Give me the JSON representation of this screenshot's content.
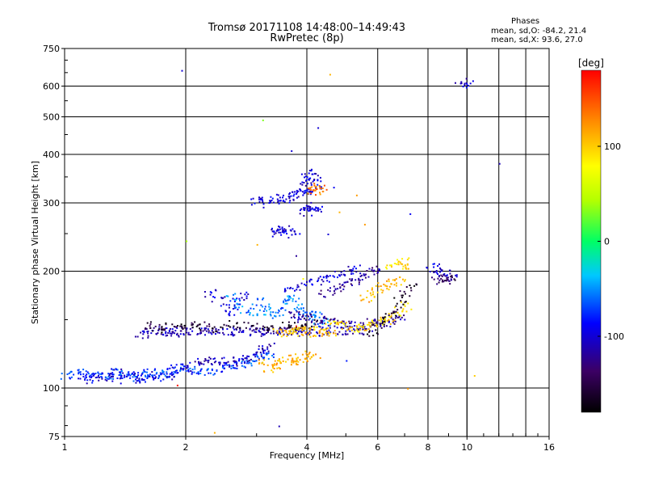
{
  "header": {
    "title": "Tromsø 20171108 14:48:00–14:49:43",
    "subtitle": "RwPretec (8p)"
  },
  "phases": {
    "heading": "Phases",
    "o_line": "mean, sd,O:  -84.2, 21.4",
    "x_line": "mean, sd,X:  93.6, 27.0"
  },
  "chart_data": {
    "type": "scatter",
    "title": "Tromsø 20171108 14:48:00–14:49:43",
    "xlabel": "Frequency [MHz]",
    "ylabel": "Stationary phase Virtual Height [km]",
    "x_scale": "log",
    "y_scale": "log",
    "xlim": [
      1,
      16
    ],
    "ylim": [
      75,
      750
    ],
    "xticks": [
      1,
      2,
      4,
      6,
      8,
      10,
      16
    ],
    "yticks": [
      75,
      100,
      200,
      300,
      400,
      500,
      600,
      750
    ],
    "grid": true,
    "colorbar": {
      "label": "[deg]",
      "range": [
        -180,
        180
      ],
      "ticks": [
        -100,
        0,
        100
      ],
      "colormap": "rainbow"
    },
    "traces": [
      {
        "x": [
          1.0,
          1.05,
          1.1,
          1.15,
          1.2,
          1.25,
          1.3,
          1.35,
          1.4,
          1.45,
          1.5,
          1.55,
          1.6,
          1.65,
          1.7,
          1.75,
          1.8,
          1.85,
          1.9,
          2.0,
          2.1,
          2.2,
          2.3,
          2.4,
          2.5,
          2.6,
          2.7,
          2.8,
          2.9,
          3.0,
          3.1,
          3.2
        ],
        "y": [
          108,
          110,
          110,
          108,
          110,
          109,
          107,
          110,
          109,
          108,
          107,
          108,
          110,
          109,
          110,
          108,
          109,
          111,
          113,
          112,
          112,
          111,
          111,
          111,
          115,
          115,
          115,
          117,
          119,
          119,
          121,
          122
        ],
        "phase": -70
      },
      {
        "x": [
          1.1,
          1.15,
          1.2,
          1.25,
          1.3,
          1.35,
          1.4,
          1.45,
          1.5,
          1.55,
          1.6,
          1.7,
          1.8,
          1.9,
          2.0
        ],
        "y": [
          107,
          105,
          108,
          107,
          110,
          105,
          110,
          108,
          107,
          105,
          108,
          107,
          108,
          111,
          111
        ],
        "phase": -95
      },
      {
        "x": [
          2.0,
          2.1,
          2.2,
          2.3,
          2.4,
          2.5,
          2.6,
          2.7,
          2.8,
          2.9,
          3.0,
          3.1,
          3.2
        ],
        "y": [
          115,
          116,
          118,
          118,
          119,
          116,
          117,
          118,
          119,
          120,
          124,
          126,
          128
        ],
        "phase": -105
      },
      {
        "x": [
          3.1,
          3.2,
          3.3,
          3.4,
          3.5,
          3.6,
          3.7,
          3.8,
          3.9,
          4.0,
          4.1
        ],
        "y": [
          116,
          113,
          114,
          116,
          120,
          119,
          117,
          120,
          120,
          122,
          122
        ],
        "phase": 110
      },
      {
        "x": [
          1.55,
          1.6,
          1.65,
          1.7,
          1.75,
          1.8,
          1.85,
          1.9,
          1.95,
          2.0,
          2.1,
          2.2,
          2.3,
          2.4,
          2.5,
          2.6,
          2.7,
          2.8,
          2.9,
          3.0,
          3.1,
          3.2,
          3.3,
          3.4,
          3.5,
          3.6,
          3.7,
          3.8,
          3.9,
          4.0,
          4.2,
          4.4,
          4.6,
          4.8,
          5.0,
          5.2,
          5.4,
          5.6
        ],
        "y": [
          138,
          140,
          138,
          141,
          140,
          140,
          139,
          141,
          140,
          141,
          140,
          140,
          141,
          140,
          141,
          140,
          141,
          140,
          142,
          140,
          141,
          140,
          140,
          140,
          141,
          140,
          141,
          140,
          141,
          141,
          140,
          141,
          141,
          141,
          141,
          141,
          140,
          142
        ],
        "phase": -110
      },
      {
        "x": [
          1.6,
          1.7,
          1.8,
          1.9,
          2.0,
          2.1,
          2.2,
          2.3,
          2.5,
          2.7,
          2.9,
          3.1,
          3.3,
          3.5,
          3.7,
          3.9,
          4.1
        ],
        "y": [
          146,
          143,
          145,
          147,
          144,
          146,
          145,
          143,
          147,
          146,
          145,
          144,
          144,
          146,
          145,
          146,
          147
        ],
        "phase": -160
      },
      {
        "x": [
          2.6,
          2.7,
          2.8,
          2.9,
          3.0,
          3.1,
          3.2,
          3.3,
          3.4,
          3.5,
          3.6,
          3.7,
          3.8,
          3.9,
          4.0,
          4.1,
          4.2,
          4.3,
          4.4
        ],
        "y": [
          172,
          165,
          160,
          158,
          168,
          163,
          158,
          155,
          157,
          165,
          170,
          172,
          162,
          158,
          155,
          154,
          156,
          150,
          148
        ],
        "phase": -55
      },
      {
        "x": [
          2.3,
          2.4,
          2.5,
          2.6,
          2.7,
          2.8,
          3.6,
          3.8,
          4.0,
          4.2,
          4.4,
          4.6,
          4.8,
          5.0,
          5.2
        ],
        "y": [
          176,
          170,
          162,
          158,
          168,
          174,
          178,
          183,
          188,
          190,
          192,
          194,
          197,
          200,
          202
        ],
        "phase": -100
      },
      {
        "x": [
          3.7,
          3.8,
          3.9,
          4.0,
          4.2,
          4.4,
          4.6,
          4.8,
          5.0,
          5.2,
          5.4,
          5.6,
          5.8,
          6.0,
          6.2,
          6.4,
          6.6,
          6.8
        ],
        "y": [
          155,
          153,
          152,
          152,
          150,
          151,
          149,
          148,
          146,
          145,
          144,
          148,
          150,
          148,
          147,
          146,
          150,
          154
        ],
        "phase": -120
      },
      {
        "x": [
          3.4,
          3.5,
          3.6,
          3.7,
          3.8,
          3.9,
          4.0,
          4.1,
          4.2,
          4.3,
          4.4,
          4.6
        ],
        "y": [
          140,
          139,
          140,
          141,
          141,
          140,
          141,
          140,
          139,
          141,
          140,
          140
        ],
        "phase": 105
      },
      {
        "x": [
          4.6,
          4.8,
          5.0,
          5.2,
          5.4,
          5.6,
          5.8,
          6.0,
          6.2,
          6.4,
          6.6,
          6.8,
          7.0
        ],
        "y": [
          148,
          146,
          145,
          143,
          142,
          143,
          146,
          148,
          150,
          152,
          156,
          160,
          164
        ],
        "phase": 95
      },
      {
        "x": [
          5.6,
          5.8,
          6.0,
          6.2,
          6.4,
          6.6,
          6.8
        ],
        "y": [
          170,
          176,
          180,
          183,
          188,
          186,
          190
        ],
        "phase": 110
      },
      {
        "x": [
          5.8,
          6.0,
          6.2,
          6.4,
          6.6,
          6.8,
          7.0,
          7.2
        ],
        "y": [
          140,
          145,
          150,
          155,
          160,
          168,
          175,
          185
        ],
        "phase": -165
      },
      {
        "x": [
          4.4,
          4.6,
          4.8,
          5.0,
          5.2,
          5.4,
          5.6,
          5.8,
          6.0
        ],
        "y": [
          176,
          178,
          182,
          186,
          188,
          192,
          198,
          200,
          204
        ],
        "phase": -120
      },
      {
        "x": [
          3.0,
          3.1,
          3.2,
          3.3,
          3.4,
          3.5,
          3.6,
          3.7,
          3.8,
          3.9,
          4.0,
          4.1,
          4.2
        ],
        "y": [
          305,
          308,
          300,
          310,
          312,
          306,
          310,
          315,
          318,
          320,
          322,
          325,
          328
        ],
        "phase": -100
      },
      {
        "x": [
          3.95,
          4.0,
          4.05,
          4.1,
          4.15,
          4.2
        ],
        "y": [
          285,
          292,
          290,
          295,
          290,
          292
        ],
        "phase": -100
      },
      {
        "x": [
          3.95,
          4.0,
          4.05,
          4.1,
          4.2
        ],
        "y": [
          340,
          352,
          360,
          345,
          350
        ],
        "phase": -100
      },
      {
        "x": [
          4.15,
          4.2,
          4.25,
          4.3
        ],
        "y": [
          322,
          326,
          328,
          330
        ],
        "phase": 135
      },
      {
        "x": [
          3.3,
          3.35,
          3.4,
          3.5,
          3.6,
          3.7
        ],
        "y": [
          258,
          255,
          252,
          256,
          258,
          250
        ],
        "phase": -100
      },
      {
        "x": [
          8.2,
          8.5,
          8.8,
          9.0,
          9.2
        ],
        "y": [
          205,
          202,
          200,
          198,
          195
        ],
        "phase": -100
      },
      {
        "x": [
          8.4,
          8.6,
          8.8,
          9.0
        ],
        "y": [
          190,
          193,
          192,
          190
        ],
        "phase": -140
      },
      {
        "x": [
          6.5,
          6.7,
          6.9,
          7.1
        ],
        "y": [
          205,
          210,
          214,
          208
        ],
        "phase": 90
      },
      {
        "x": [
          9.6,
          10.0
        ],
        "y": [
          605,
          618
        ],
        "phase": -100
      }
    ],
    "scatter": [
      {
        "x": 1.95,
        "y": 660,
        "phase": -100
      },
      {
        "x": 3.1,
        "y": 492,
        "phase": 30
      },
      {
        "x": 4.25,
        "y": 470,
        "phase": -100
      },
      {
        "x": 4.55,
        "y": 645,
        "phase": 110
      },
      {
        "x": 3.65,
        "y": 410,
        "phase": -100
      },
      {
        "x": 12.0,
        "y": 380,
        "phase": -110
      },
      {
        "x": 3.4,
        "y": 80,
        "phase": -110
      },
      {
        "x": 2.35,
        "y": 77,
        "phase": 110
      },
      {
        "x": 10.4,
        "y": 108,
        "phase": 100
      },
      {
        "x": 4.65,
        "y": 330,
        "phase": -90
      },
      {
        "x": 5.3,
        "y": 315,
        "phase": 120
      },
      {
        "x": 7.2,
        "y": 282,
        "phase": -90
      },
      {
        "x": 4.8,
        "y": 285,
        "phase": 110
      },
      {
        "x": 3.75,
        "y": 220,
        "phase": -120
      },
      {
        "x": 4.5,
        "y": 250,
        "phase": -100
      },
      {
        "x": 5.55,
        "y": 265,
        "phase": 120
      },
      {
        "x": 7.1,
        "y": 100,
        "phase": 120
      },
      {
        "x": 2.0,
        "y": 240,
        "phase": 40
      },
      {
        "x": 3.0,
        "y": 235,
        "phase": 110
      },
      {
        "x": 1.9,
        "y": 102,
        "phase": 170
      },
      {
        "x": 4.3,
        "y": 120,
        "phase": 120
      },
      {
        "x": 5.0,
        "y": 118,
        "phase": -80
      },
      {
        "x": 3.75,
        "y": 145,
        "phase": 160
      },
      {
        "x": 3.9,
        "y": 192,
        "phase": 80
      },
      {
        "x": 5.4,
        "y": 208,
        "phase": -100
      }
    ]
  }
}
